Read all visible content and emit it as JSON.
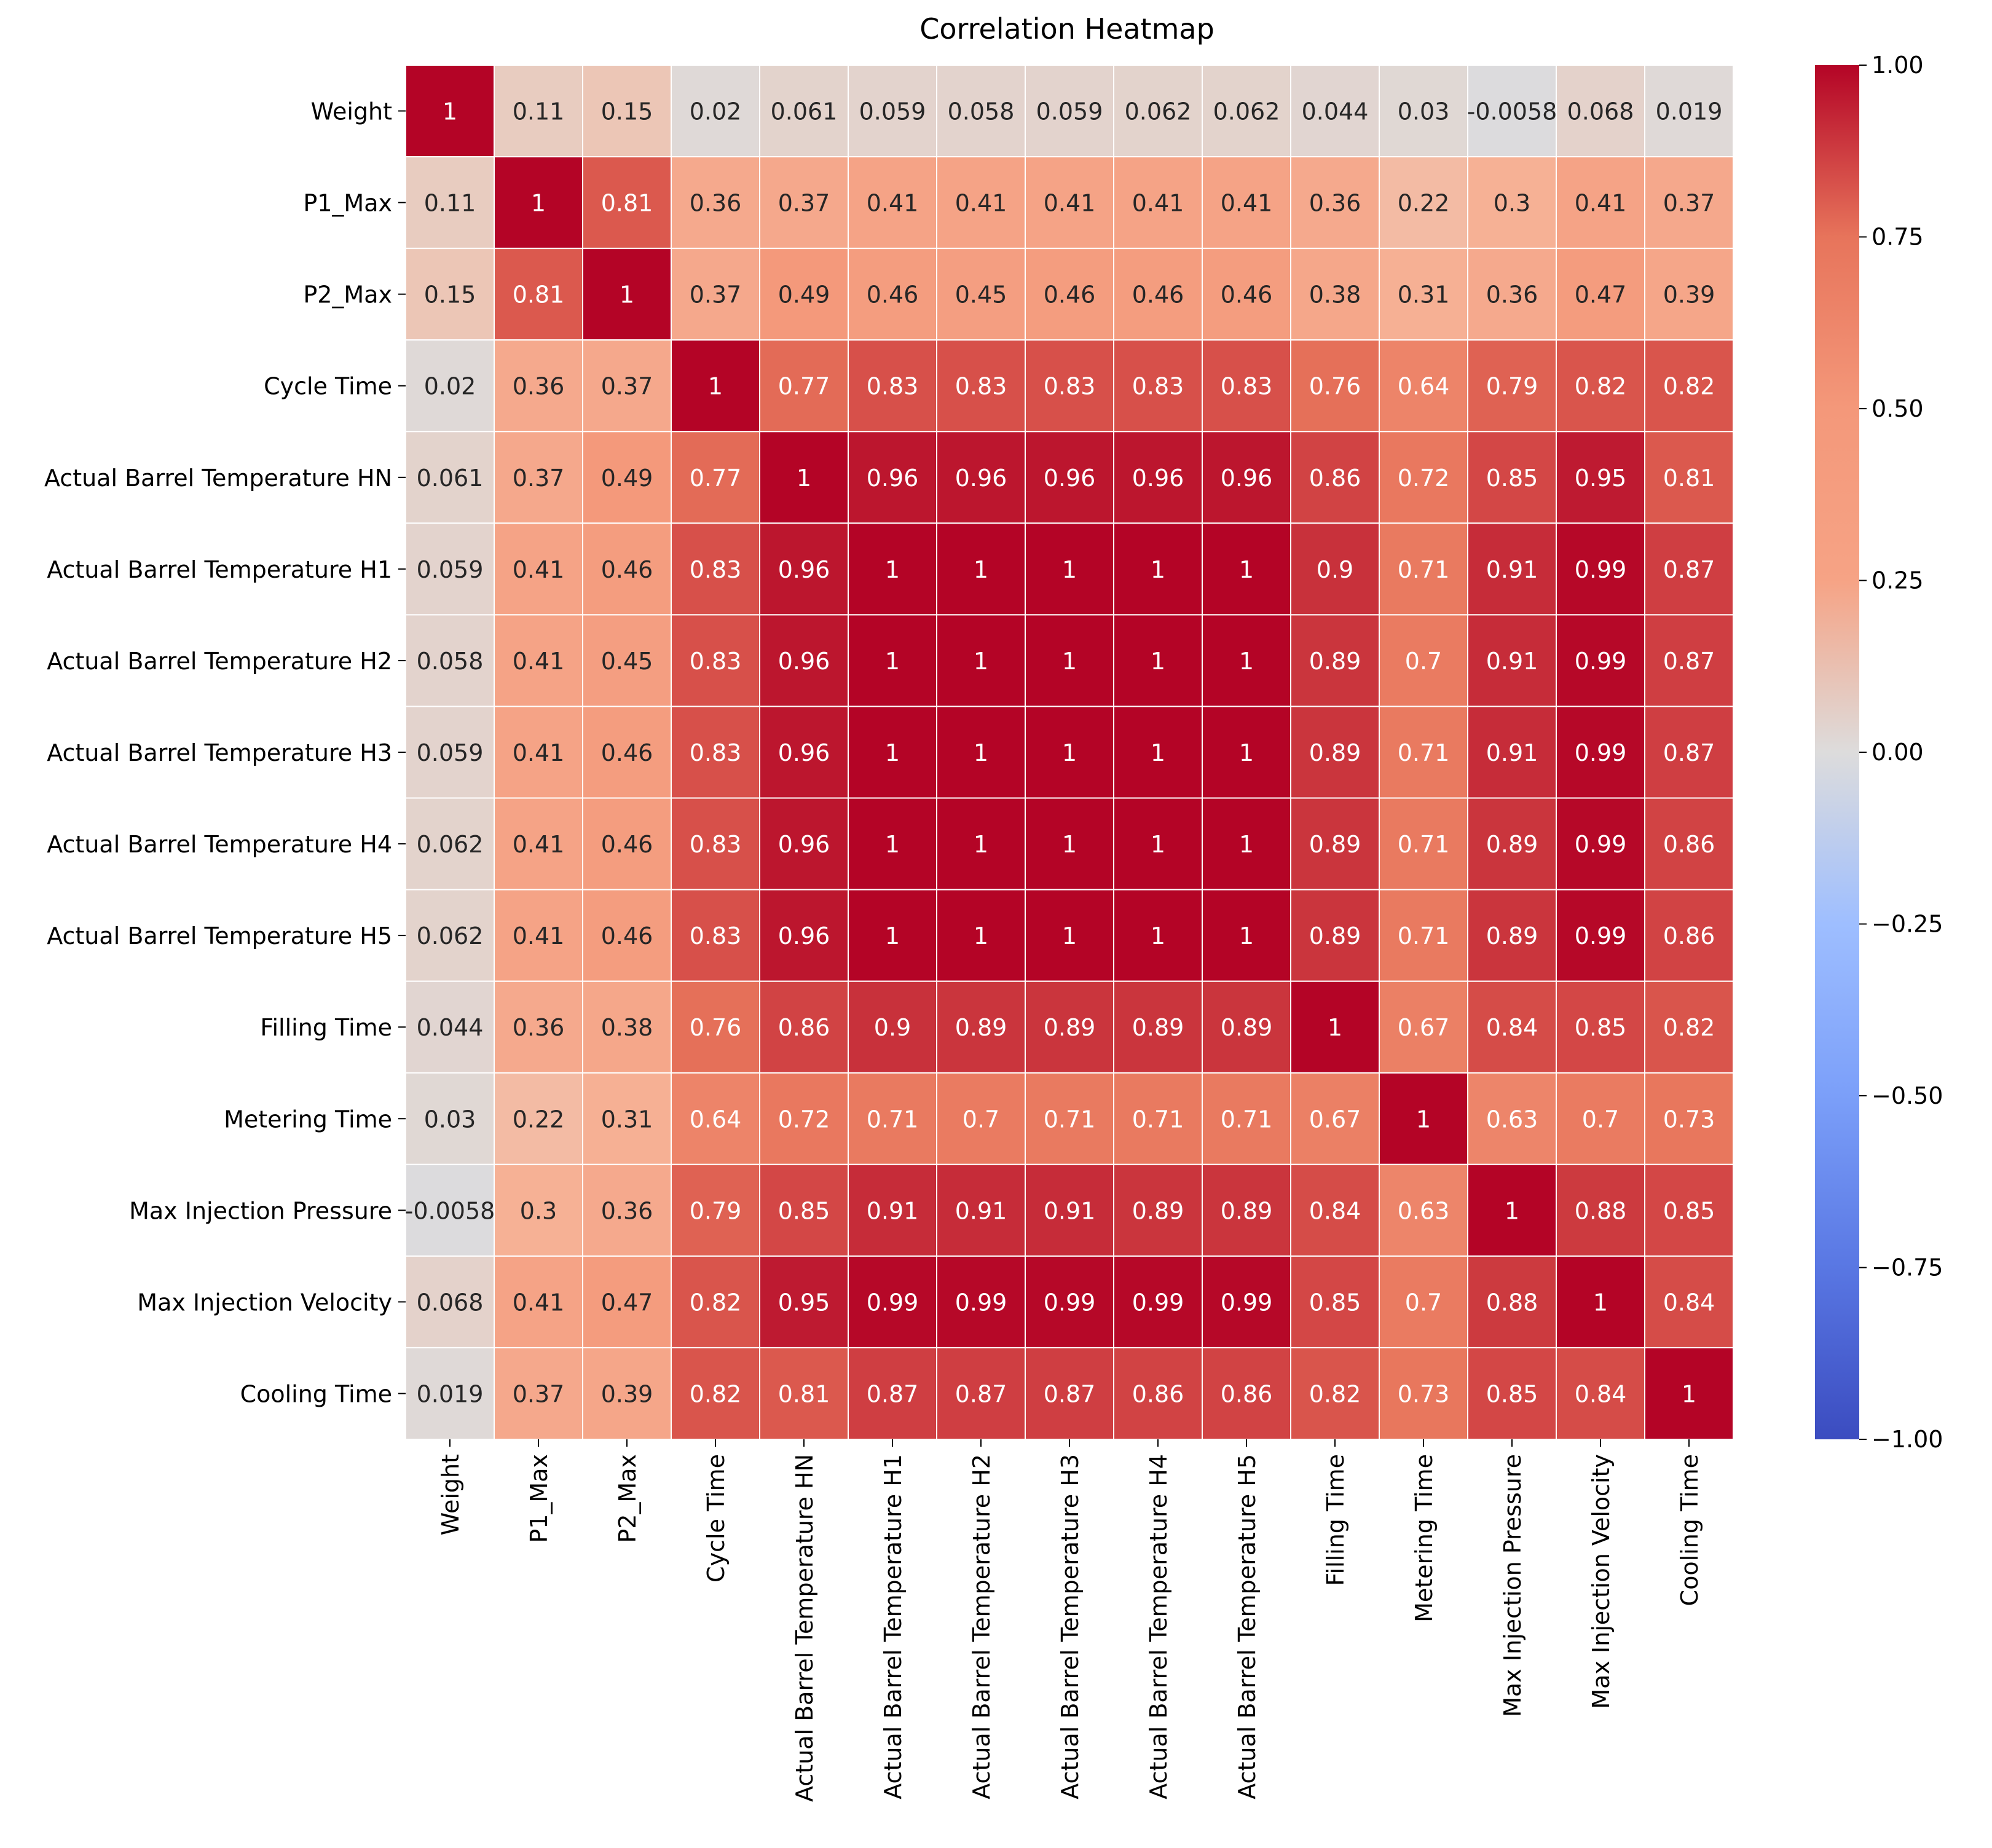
{
  "chart_data": {
    "type": "heatmap",
    "title": "Correlation Heatmap",
    "xlabel": "",
    "ylabel": "",
    "labels": [
      "Weight",
      "P1_Max",
      "P2_Max",
      "Cycle Time",
      "Actual Barrel Temperature HN",
      "Actual Barrel Temperature H1",
      "Actual Barrel Temperature H2",
      "Actual Barrel Temperature H3",
      "Actual Barrel Temperature H4",
      "Actual Barrel Temperature H5",
      "Filling Time",
      "Metering Time",
      "Max Injection Pressure",
      "Max Injection Velocity",
      "Cooling Time"
    ],
    "matrix": [
      [
        1,
        0.11,
        0.15,
        0.02,
        0.061,
        0.059,
        0.058,
        0.059,
        0.062,
        0.062,
        0.044,
        0.03,
        -0.0058,
        0.068,
        0.019
      ],
      [
        0.11,
        1,
        0.81,
        0.36,
        0.37,
        0.41,
        0.41,
        0.41,
        0.41,
        0.41,
        0.36,
        0.22,
        0.3,
        0.41,
        0.37
      ],
      [
        0.15,
        0.81,
        1,
        0.37,
        0.49,
        0.46,
        0.45,
        0.46,
        0.46,
        0.46,
        0.38,
        0.31,
        0.36,
        0.47,
        0.39
      ],
      [
        0.02,
        0.36,
        0.37,
        1,
        0.77,
        0.83,
        0.83,
        0.83,
        0.83,
        0.83,
        0.76,
        0.64,
        0.79,
        0.82,
        0.82
      ],
      [
        0.061,
        0.37,
        0.49,
        0.77,
        1,
        0.96,
        0.96,
        0.96,
        0.96,
        0.96,
        0.86,
        0.72,
        0.85,
        0.95,
        0.81
      ],
      [
        0.059,
        0.41,
        0.46,
        0.83,
        0.96,
        1,
        1,
        1,
        1,
        1,
        0.9,
        0.71,
        0.91,
        0.99,
        0.87
      ],
      [
        0.058,
        0.41,
        0.45,
        0.83,
        0.96,
        1,
        1,
        1,
        1,
        1,
        0.89,
        0.7,
        0.91,
        0.99,
        0.87
      ],
      [
        0.059,
        0.41,
        0.46,
        0.83,
        0.96,
        1,
        1,
        1,
        1,
        1,
        0.89,
        0.71,
        0.91,
        0.99,
        0.87
      ],
      [
        0.062,
        0.41,
        0.46,
        0.83,
        0.96,
        1,
        1,
        1,
        1,
        1,
        0.89,
        0.71,
        0.89,
        0.99,
        0.86
      ],
      [
        0.062,
        0.41,
        0.46,
        0.83,
        0.96,
        1,
        1,
        1,
        1,
        1,
        0.89,
        0.71,
        0.89,
        0.99,
        0.86
      ],
      [
        0.044,
        0.36,
        0.38,
        0.76,
        0.86,
        0.9,
        0.89,
        0.89,
        0.89,
        0.89,
        1,
        0.67,
        0.84,
        0.85,
        0.82
      ],
      [
        0.03,
        0.22,
        0.31,
        0.64,
        0.72,
        0.71,
        0.7,
        0.71,
        0.71,
        0.71,
        0.67,
        1,
        0.63,
        0.7,
        0.73
      ],
      [
        -0.0058,
        0.3,
        0.36,
        0.79,
        0.85,
        0.91,
        0.91,
        0.91,
        0.89,
        0.89,
        0.84,
        0.63,
        1,
        0.88,
        0.85
      ],
      [
        0.068,
        0.41,
        0.47,
        0.82,
        0.95,
        0.99,
        0.99,
        0.99,
        0.99,
        0.99,
        0.85,
        0.7,
        0.88,
        1,
        0.84
      ],
      [
        0.019,
        0.37,
        0.39,
        0.82,
        0.81,
        0.87,
        0.87,
        0.87,
        0.86,
        0.86,
        0.82,
        0.73,
        0.85,
        0.84,
        1
      ]
    ],
    "colormap": "coolwarm",
    "vmin": -1,
    "vmax": 1,
    "colorbar": {
      "ticks": [
        1.0,
        0.75,
        0.5,
        0.25,
        0.0,
        -0.25,
        -0.5,
        -0.75,
        -1.0
      ],
      "tick_labels": [
        "1.00",
        "0.75",
        "0.50",
        "0.25",
        "0.00",
        "−0.25",
        "−0.50",
        "−0.75",
        "−1.00"
      ]
    },
    "annotations": true,
    "legend": "right"
  }
}
